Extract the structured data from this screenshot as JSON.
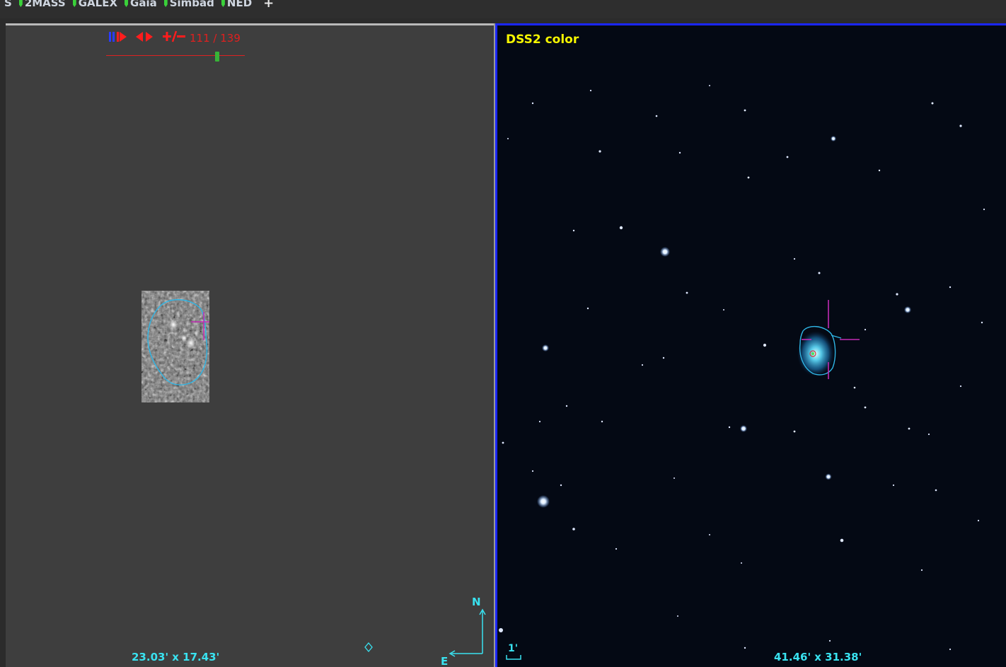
{
  "toolbar": {
    "items": [
      {
        "label": "S",
        "flag": false
      },
      {
        "label": "2MASS",
        "flag": true
      },
      {
        "label": "GALEX",
        "flag": true
      },
      {
        "label": "Gaia",
        "flag": true
      },
      {
        "label": "Simbad",
        "flag": true
      },
      {
        "label": "NED",
        "flag": true
      }
    ],
    "add_label": "+"
  },
  "left_view": {
    "player": {
      "pause_label": "⏸",
      "step_label": "▶",
      "prev_next_label": "◀▶",
      "speed_label": "+/−",
      "frame_current": "111",
      "frame_total": "139",
      "frame_separator": " / ",
      "frame_position_fraction": 0.799
    },
    "fov_label": "23.03' x 17.43'",
    "compass": {
      "north": "N",
      "east": "E"
    }
  },
  "right_view": {
    "survey_label": "DSS2 color",
    "scale_label": "1'",
    "fov_label": "41.46' x 31.38'"
  },
  "colors": {
    "accent_blue_border": "#1a26ff",
    "contour_cyan": "#2fb6e6",
    "reticle_magenta": "#c22bb4",
    "survey_label_yellow": "#f6f600",
    "player_red": "#ff1d1d",
    "label_cyan": "#39e2f0"
  },
  "icons": {
    "pause": "pause-icon",
    "step": "step-forward-icon",
    "prev_next": "prev-next-icon",
    "compass": "compass-icon",
    "reticle": "reticle-icon",
    "scale": "scale-bar-icon"
  }
}
